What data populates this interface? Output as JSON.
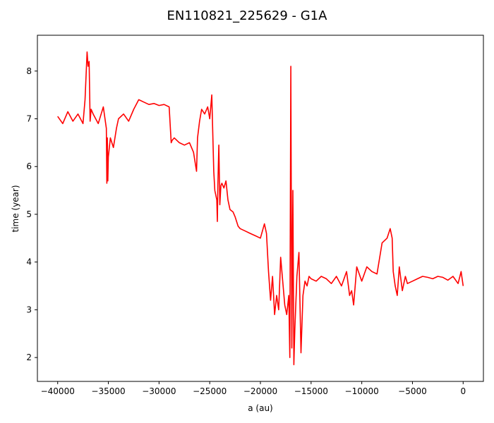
{
  "chart_data": {
    "type": "line",
    "title": "EN110821_225629 - G1A",
    "xlabel": "a (au)",
    "ylabel": "time (year)",
    "xlim": [
      -42000,
      2000
    ],
    "ylim": [
      1.5,
      8.75
    ],
    "grid": false,
    "xticks": [
      -40000,
      -35000,
      -30000,
      -25000,
      -20000,
      -15000,
      -10000,
      -5000,
      0
    ],
    "xtick_labels": [
      "−40000",
      "−35000",
      "−30000",
      "−25000",
      "−20000",
      "−15000",
      "−10000",
      "−5000",
      "0"
    ],
    "yticks": [
      2,
      3,
      4,
      5,
      6,
      7,
      8
    ],
    "ytick_labels": [
      "2",
      "3",
      "4",
      "5",
      "6",
      "7",
      "8"
    ],
    "series": [
      {
        "color": "#ff0000",
        "x": [
          -40000,
          -39500,
          -39000,
          -38500,
          -38000,
          -37500,
          -37300,
          -37100,
          -37000,
          -36900,
          -36800,
          -36700,
          -36500,
          -36000,
          -35500,
          -35200,
          -35150,
          -35100,
          -35050,
          -35000,
          -34800,
          -34500,
          -34200,
          -34000,
          -33500,
          -33000,
          -32500,
          -32000,
          -31500,
          -31000,
          -30500,
          -30000,
          -29500,
          -29000,
          -28800,
          -28700,
          -28500,
          -28000,
          -27500,
          -27000,
          -26600,
          -26300,
          -26200,
          -26000,
          -25800,
          -25500,
          -25200,
          -25000,
          -24800,
          -24600,
          -24500,
          -24300,
          -24250,
          -24200,
          -24100,
          -24000,
          -23900,
          -23800,
          -23600,
          -23400,
          -23200,
          -23000,
          -22700,
          -22500,
          -22200,
          -22000,
          -21500,
          -21000,
          -20500,
          -20000,
          -19600,
          -19400,
          -19200,
          -19000,
          -18800,
          -18600,
          -18400,
          -18200,
          -18000,
          -17800,
          -17600,
          -17400,
          -17200,
          -17100,
          -17000,
          -16900,
          -16800,
          -16700,
          -16600,
          -16400,
          -16200,
          -16000,
          -15800,
          -15600,
          -15400,
          -15200,
          -15000,
          -14500,
          -14000,
          -13500,
          -13000,
          -12500,
          -12000,
          -11500,
          -11200,
          -11000,
          -10800,
          -10500,
          -10000,
          -9500,
          -9000,
          -8500,
          -8000,
          -7500,
          -7200,
          -7000,
          -6900,
          -6700,
          -6500,
          -6300,
          -6000,
          -5700,
          -5500,
          -5000,
          -4500,
          -4000,
          -3500,
          -3000,
          -2500,
          -2000,
          -1500,
          -1000,
          -500,
          -200,
          0
        ],
        "y": [
          7.05,
          6.9,
          7.15,
          6.95,
          7.1,
          6.9,
          7.4,
          8.4,
          8.1,
          8.2,
          6.95,
          7.2,
          7.1,
          6.9,
          7.25,
          6.8,
          5.65,
          6.6,
          5.7,
          6.2,
          6.6,
          6.4,
          6.8,
          7.0,
          7.1,
          6.95,
          7.2,
          7.4,
          7.35,
          7.3,
          7.32,
          7.28,
          7.3,
          7.25,
          6.5,
          6.55,
          6.6,
          6.5,
          6.45,
          6.5,
          6.3,
          5.9,
          6.6,
          6.95,
          7.2,
          7.1,
          7.25,
          7.0,
          7.5,
          5.9,
          5.5,
          5.3,
          4.85,
          5.6,
          6.45,
          5.2,
          5.6,
          5.65,
          5.55,
          5.7,
          5.3,
          5.1,
          5.05,
          4.95,
          4.75,
          4.7,
          4.65,
          4.6,
          4.55,
          4.5,
          4.8,
          4.6,
          3.8,
          3.2,
          3.7,
          2.9,
          3.3,
          3.0,
          4.1,
          3.6,
          3.1,
          2.9,
          3.3,
          2.0,
          8.1,
          2.2,
          5.5,
          1.85,
          2.6,
          3.7,
          4.2,
          2.1,
          3.3,
          3.6,
          3.5,
          3.7,
          3.65,
          3.6,
          3.7,
          3.65,
          3.55,
          3.7,
          3.5,
          3.8,
          3.3,
          3.4,
          3.1,
          3.9,
          3.6,
          3.9,
          3.8,
          3.75,
          4.4,
          4.5,
          4.7,
          4.5,
          3.8,
          3.5,
          3.3,
          3.9,
          3.4,
          3.7,
          3.55,
          3.6,
          3.65,
          3.7,
          3.68,
          3.65,
          3.7,
          3.68,
          3.62,
          3.7,
          3.55,
          3.8,
          3.5
        ]
      }
    ]
  }
}
